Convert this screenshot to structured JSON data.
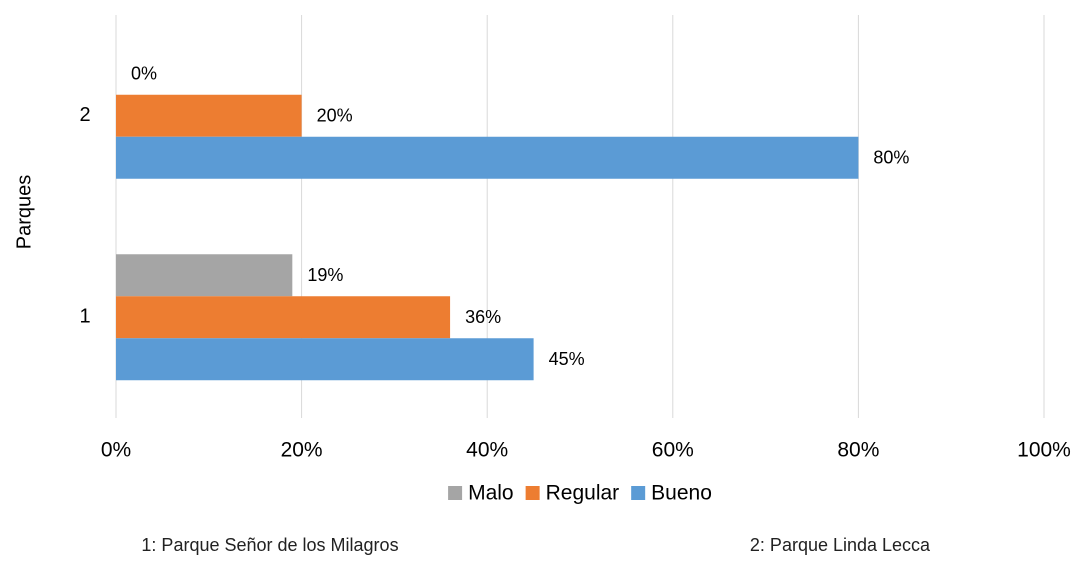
{
  "chart_data": {
    "type": "bar",
    "orientation": "horizontal",
    "y_label": "Parques",
    "categories": [
      "1",
      "2"
    ],
    "series": [
      {
        "name": "Malo",
        "color": "#a5a5a5",
        "values": [
          19,
          0
        ],
        "value_labels": [
          "19%",
          "0%"
        ]
      },
      {
        "name": "Regular",
        "color": "#ed7d31",
        "values": [
          36,
          20
        ],
        "value_labels": [
          "36%",
          "20%"
        ]
      },
      {
        "name": "Bueno",
        "color": "#5b9bd5",
        "values": [
          45,
          80
        ],
        "value_labels": [
          "45%",
          "80%"
        ]
      }
    ],
    "xlim": [
      0,
      100
    ],
    "xticks": [
      {
        "value": 0,
        "label": "0%"
      },
      {
        "value": 20,
        "label": "20%"
      },
      {
        "value": 40,
        "label": "40%"
      },
      {
        "value": 60,
        "label": "60%"
      },
      {
        "value": 80,
        "label": "80%"
      },
      {
        "value": 100,
        "label": "100%"
      }
    ],
    "grid": true,
    "legend": "bottom",
    "footnotes": [
      "1: Parque Señor de los Milagros",
      "2: Parque Linda Lecca"
    ]
  }
}
